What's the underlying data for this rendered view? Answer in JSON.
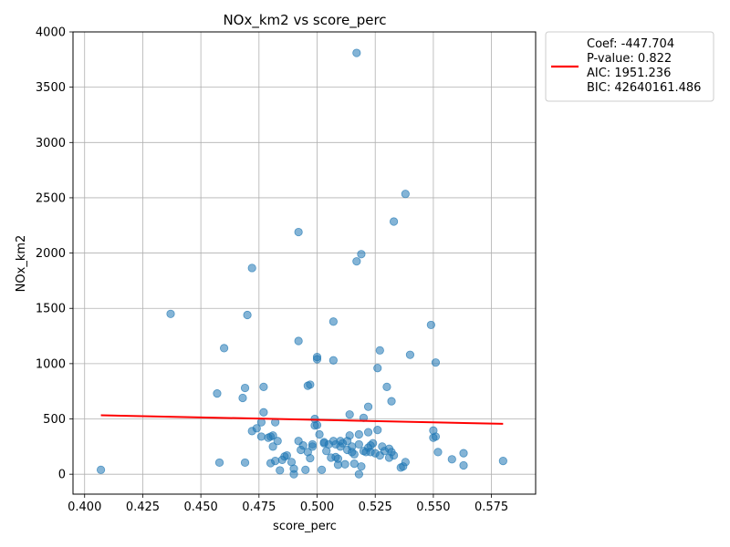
{
  "chart_data": {
    "type": "scatter",
    "title": "NOx_km2 vs score_perc",
    "xlabel": "score_perc",
    "ylabel": "NOx_km2",
    "xlim": [
      0.395,
      0.594
    ],
    "ylim": [
      -180,
      4000
    ],
    "xticks": [
      "0.400",
      "0.425",
      "0.450",
      "0.475",
      "0.500",
      "0.525",
      "0.550",
      "0.575"
    ],
    "xtick_values": [
      0.4,
      0.425,
      0.45,
      0.475,
      0.5,
      0.525,
      0.55,
      0.575
    ],
    "yticks": [
      "0",
      "500",
      "1000",
      "1500",
      "2000",
      "2500",
      "3000",
      "3500",
      "4000"
    ],
    "ytick_values": [
      0,
      500,
      1000,
      1500,
      2000,
      2500,
      3000,
      3500,
      4000
    ],
    "grid": true,
    "point_color": "#1f77b4",
    "line_color": "#ff0000",
    "legend": {
      "placement": "outside-top-right",
      "lines": [
        "Coef: -447.704",
        "P-value: 0.822",
        "AIC: 1951.236",
        "BIC: 42640161.486"
      ]
    },
    "regression_line": {
      "x": [
        0.407,
        0.58
      ],
      "y": [
        533,
        456
      ]
    },
    "points": [
      [
        0.407,
        40
      ],
      [
        0.437,
        1450
      ],
      [
        0.457,
        730
      ],
      [
        0.458,
        105
      ],
      [
        0.46,
        1140
      ],
      [
        0.468,
        690
      ],
      [
        0.469,
        780
      ],
      [
        0.469,
        105
      ],
      [
        0.47,
        1440
      ],
      [
        0.472,
        1865
      ],
      [
        0.472,
        390
      ],
      [
        0.474,
        415
      ],
      [
        0.476,
        340
      ],
      [
        0.476,
        470
      ],
      [
        0.477,
        790
      ],
      [
        0.477,
        560
      ],
      [
        0.479,
        330
      ],
      [
        0.48,
        100
      ],
      [
        0.48,
        340
      ],
      [
        0.481,
        350
      ],
      [
        0.481,
        250
      ],
      [
        0.482,
        470
      ],
      [
        0.482,
        120
      ],
      [
        0.483,
        300
      ],
      [
        0.484,
        35
      ],
      [
        0.485,
        130
      ],
      [
        0.486,
        160
      ],
      [
        0.487,
        170
      ],
      [
        0.489,
        110
      ],
      [
        0.49,
        0
      ],
      [
        0.49,
        50
      ],
      [
        0.492,
        2190
      ],
      [
        0.492,
        300
      ],
      [
        0.492,
        1205
      ],
      [
        0.493,
        220
      ],
      [
        0.494,
        260
      ],
      [
        0.495,
        40
      ],
      [
        0.496,
        200
      ],
      [
        0.496,
        800
      ],
      [
        0.497,
        810
      ],
      [
        0.497,
        145
      ],
      [
        0.498,
        250
      ],
      [
        0.498,
        270
      ],
      [
        0.499,
        440
      ],
      [
        0.499,
        500
      ],
      [
        0.5,
        445
      ],
      [
        0.5,
        1040
      ],
      [
        0.5,
        1060
      ],
      [
        0.501,
        360
      ],
      [
        0.502,
        40
      ],
      [
        0.503,
        280
      ],
      [
        0.503,
        290
      ],
      [
        0.504,
        210
      ],
      [
        0.505,
        270
      ],
      [
        0.506,
        150
      ],
      [
        0.507,
        1380
      ],
      [
        0.507,
        1030
      ],
      [
        0.507,
        300
      ],
      [
        0.508,
        155
      ],
      [
        0.508,
        270
      ],
      [
        0.509,
        85
      ],
      [
        0.509,
        140
      ],
      [
        0.51,
        250
      ],
      [
        0.51,
        300
      ],
      [
        0.511,
        280
      ],
      [
        0.512,
        90
      ],
      [
        0.513,
        220
      ],
      [
        0.513,
        300
      ],
      [
        0.514,
        540
      ],
      [
        0.514,
        350
      ],
      [
        0.515,
        250
      ],
      [
        0.515,
        200
      ],
      [
        0.516,
        180
      ],
      [
        0.516,
        95
      ],
      [
        0.517,
        3810
      ],
      [
        0.517,
        1925
      ],
      [
        0.518,
        0
      ],
      [
        0.518,
        270
      ],
      [
        0.518,
        360
      ],
      [
        0.519,
        1990
      ],
      [
        0.519,
        70
      ],
      [
        0.52,
        510
      ],
      [
        0.52,
        210
      ],
      [
        0.521,
        200
      ],
      [
        0.522,
        380
      ],
      [
        0.522,
        610
      ],
      [
        0.522,
        240
      ],
      [
        0.523,
        260
      ],
      [
        0.523,
        200
      ],
      [
        0.524,
        280
      ],
      [
        0.525,
        190
      ],
      [
        0.526,
        400
      ],
      [
        0.526,
        960
      ],
      [
        0.527,
        1120
      ],
      [
        0.527,
        170
      ],
      [
        0.528,
        250
      ],
      [
        0.529,
        210
      ],
      [
        0.53,
        790
      ],
      [
        0.531,
        230
      ],
      [
        0.531,
        150
      ],
      [
        0.532,
        200
      ],
      [
        0.532,
        660
      ],
      [
        0.533,
        2285
      ],
      [
        0.533,
        170
      ],
      [
        0.536,
        60
      ],
      [
        0.537,
        70
      ],
      [
        0.538,
        2535
      ],
      [
        0.538,
        110
      ],
      [
        0.54,
        1080
      ],
      [
        0.549,
        1350
      ],
      [
        0.55,
        395
      ],
      [
        0.55,
        330
      ],
      [
        0.551,
        340
      ],
      [
        0.551,
        1010
      ],
      [
        0.552,
        200
      ],
      [
        0.558,
        135
      ],
      [
        0.563,
        190
      ],
      [
        0.563,
        80
      ],
      [
        0.58,
        120
      ]
    ]
  }
}
